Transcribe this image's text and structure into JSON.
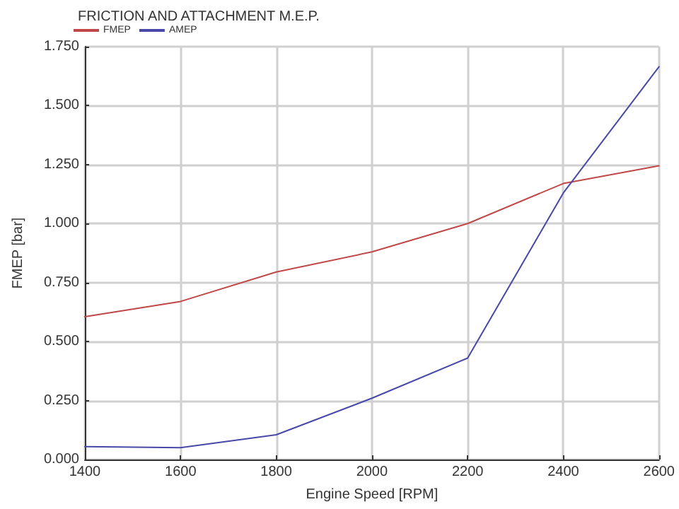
{
  "chart_data": {
    "type": "line",
    "title": "FRICTION AND ATTACHMENT M.E.P.",
    "xlabel": "Engine Speed [RPM]",
    "ylabel": "FMEP [bar]",
    "x": [
      1400,
      1600,
      1800,
      2000,
      2200,
      2400,
      2600
    ],
    "series": [
      {
        "name": "FMEP",
        "color": "#c04848",
        "values": [
          0.605,
          0.67,
          0.795,
          0.88,
          1.0,
          1.17,
          1.245
        ]
      },
      {
        "name": "AMEP",
        "color": "#4848a8",
        "values": [
          0.055,
          0.05,
          0.105,
          0.26,
          0.43,
          1.13,
          1.665
        ]
      }
    ],
    "xlim": [
      1400,
      2600
    ],
    "xticks": [
      1400,
      1600,
      1800,
      2000,
      2200,
      2400,
      2600
    ],
    "ylim": [
      0,
      1.75
    ],
    "yticks": [
      {
        "value": 0,
        "label": "0.000"
      },
      {
        "value": 0.25,
        "label": "0.250"
      },
      {
        "value": 0.5,
        "label": "0.500"
      },
      {
        "value": 0.75,
        "label": "0.750"
      },
      {
        "value": 1,
        "label": "1.000"
      },
      {
        "value": 1.25,
        "label": "1.250"
      },
      {
        "value": 1.5,
        "label": "1.500"
      },
      {
        "value": 1.75,
        "label": "1.750"
      }
    ],
    "grid": true,
    "legend": "top left",
    "marker": "none",
    "line_style": "solid"
  }
}
